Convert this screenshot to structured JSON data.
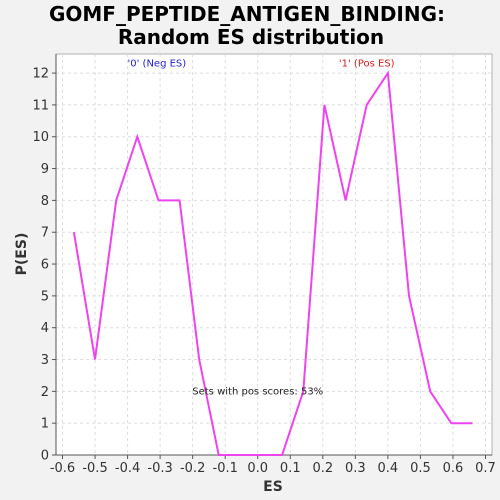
{
  "chart_data": {
    "type": "line",
    "title": "GOMF_PEPTIDE_ANTIGEN_BINDING:",
    "subtitle": "Random ES distribution",
    "xlabel": "ES",
    "ylabel": "P(ES)",
    "xlim": [
      -0.62,
      0.72
    ],
    "ylim": [
      0,
      12.6
    ],
    "x_ticks": [
      -0.6,
      -0.5,
      -0.4,
      -0.3,
      -0.2,
      -0.1,
      0.0,
      0.1,
      0.2,
      0.3,
      0.4,
      0.5,
      0.6,
      0.7
    ],
    "x_tick_labels": [
      "-0.6",
      "-0.5",
      "-0.4",
      "-0.3",
      "-0.2",
      "-0.1",
      "0.0",
      "0.1",
      "0.2",
      "0.3",
      "0.4",
      "0.5",
      "0.6",
      "0.7"
    ],
    "y_ticks": [
      0,
      1,
      2,
      3,
      4,
      5,
      6,
      7,
      8,
      9,
      10,
      11,
      12
    ],
    "y_tick_labels": [
      "0",
      "1",
      "2",
      "3",
      "4",
      "5",
      "6",
      "7",
      "8",
      "9",
      "10",
      "11",
      "12"
    ],
    "grid": true,
    "series": [
      {
        "color": "#ee44ee",
        "x": [
          -0.565,
          -0.5,
          -0.435,
          -0.37,
          -0.305,
          -0.24,
          -0.18,
          -0.12,
          -0.055,
          0.01,
          0.075,
          0.14,
          0.205,
          0.27,
          0.335,
          0.4,
          0.465,
          0.53,
          0.595,
          0.66
        ],
        "y": [
          7,
          3,
          8,
          10,
          8,
          8,
          3,
          0,
          0,
          0,
          0,
          2,
          11,
          8,
          11,
          12,
          5,
          2,
          1,
          1
        ]
      }
    ],
    "annotations": [
      {
        "text": "'0' (Neg ES)",
        "x": -0.31,
        "y": 12.2,
        "color": "#2222cc"
      },
      {
        "text": "'1' (Pos ES)",
        "x": 0.335,
        "y": 12.2,
        "color": "#cc2222"
      },
      {
        "text": "Sets with pos scores: 53%",
        "x": 0.0,
        "y": 1.9,
        "color": "#222222"
      }
    ]
  }
}
